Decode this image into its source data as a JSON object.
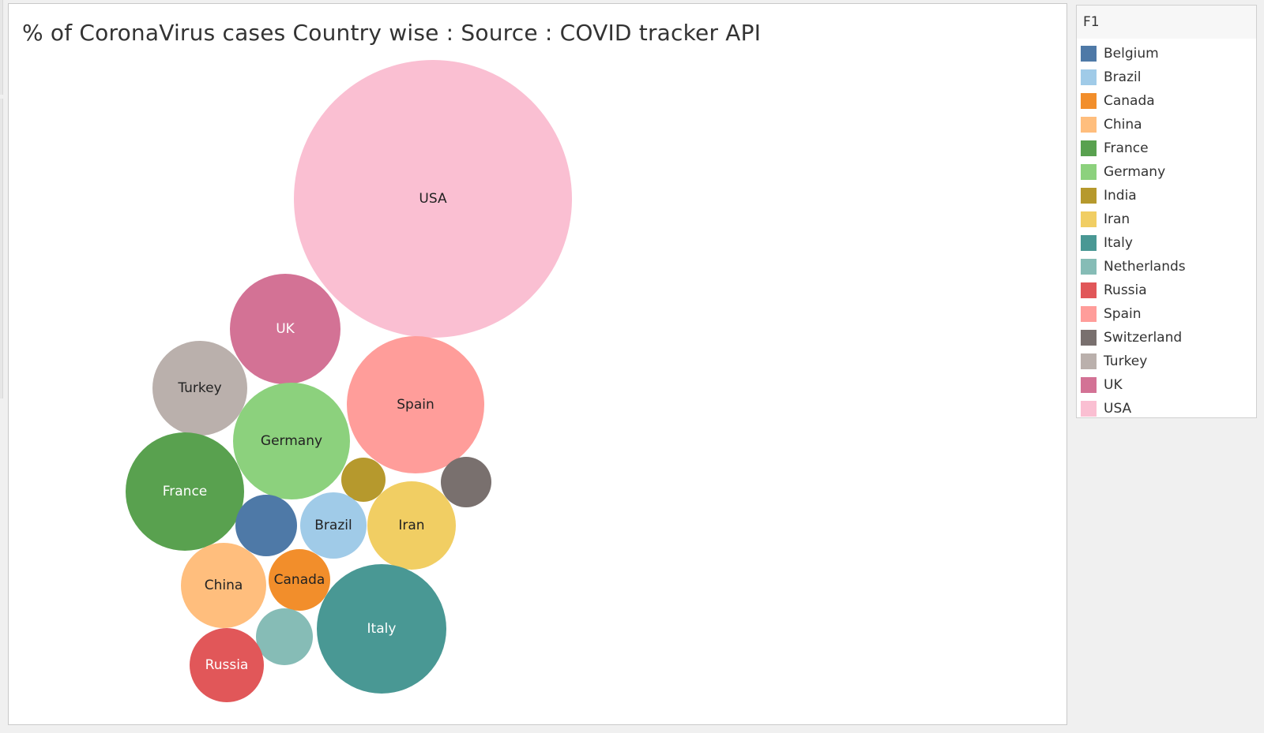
{
  "chart_data": {
    "type": "bubble",
    "title": "% of CoronaVirus cases Country wise : Source : COVID tracker API",
    "legend": {
      "title": "F1",
      "placement": "right",
      "items": [
        {
          "name": "Belgium",
          "color": "#4e79a7"
        },
        {
          "name": "Brazil",
          "color": "#a0cbe8"
        },
        {
          "name": "Canada",
          "color": "#f28e2b"
        },
        {
          "name": "China",
          "color": "#ffbe7d"
        },
        {
          "name": "France",
          "color": "#59a14f"
        },
        {
          "name": "Germany",
          "color": "#8cd17d"
        },
        {
          "name": "India",
          "color": "#b6992d"
        },
        {
          "name": "Iran",
          "color": "#f1ce63"
        },
        {
          "name": "Italy",
          "color": "#499894"
        },
        {
          "name": "Netherlands",
          "color": "#86bcb6"
        },
        {
          "name": "Russia",
          "color": "#e15759"
        },
        {
          "name": "Spain",
          "color": "#ff9d9a"
        },
        {
          "name": "Switzerland",
          "color": "#79706e"
        },
        {
          "name": "Turkey",
          "color": "#bab0ac"
        },
        {
          "name": "UK",
          "color": "#d37295"
        },
        {
          "name": "USA",
          "color": "#fabfd2"
        }
      ]
    },
    "bubbles": [
      {
        "name": "USA",
        "label": "USA",
        "color": "#fabfd2",
        "label_color": "#222222",
        "value": 31.6
      },
      {
        "name": "UK",
        "label": "UK",
        "color": "#d37295",
        "label_color": "#ffffff",
        "value": 4.9
      },
      {
        "name": "Spain",
        "label": "Spain",
        "color": "#ff9d9a",
        "label_color": "#222222",
        "value": 7.6
      },
      {
        "name": "Turkey",
        "label": "Turkey",
        "color": "#bab0ac",
        "label_color": "#222222",
        "value": 3.6
      },
      {
        "name": "Germany",
        "label": "Germany",
        "color": "#8cd17d",
        "label_color": "#222222",
        "value": 5.5
      },
      {
        "name": "France",
        "label": "France",
        "color": "#59a14f",
        "label_color": "#ffffff",
        "value": 5.7
      },
      {
        "name": "India",
        "label": "",
        "color": "#b6992d",
        "label_color": "#222222",
        "value": 0.8
      },
      {
        "name": "Switzerland",
        "label": "",
        "color": "#79706e",
        "label_color": "#ffffff",
        "value": 1.0
      },
      {
        "name": "Belgium",
        "label": "",
        "color": "#4e79a7",
        "label_color": "#ffffff",
        "value": 1.5
      },
      {
        "name": "Brazil",
        "label": "Brazil",
        "color": "#a0cbe8",
        "label_color": "#222222",
        "value": 1.8
      },
      {
        "name": "Iran",
        "label": "Iran",
        "color": "#f1ce63",
        "label_color": "#222222",
        "value": 3.0
      },
      {
        "name": "China",
        "label": "China",
        "color": "#ffbe7d",
        "label_color": "#222222",
        "value": 2.9
      },
      {
        "name": "Canada",
        "label": "Canada",
        "color": "#f28e2b",
        "label_color": "#222222",
        "value": 1.5
      },
      {
        "name": "Italy",
        "label": "Italy",
        "color": "#499894",
        "label_color": "#ffffff",
        "value": 6.8
      },
      {
        "name": "Netherlands",
        "label": "",
        "color": "#86bcb6",
        "label_color": "#ffffff",
        "value": 1.2
      },
      {
        "name": "Russia",
        "label": "Russia",
        "color": "#e15759",
        "label_color": "#ffffff",
        "value": 2.2
      }
    ]
  }
}
